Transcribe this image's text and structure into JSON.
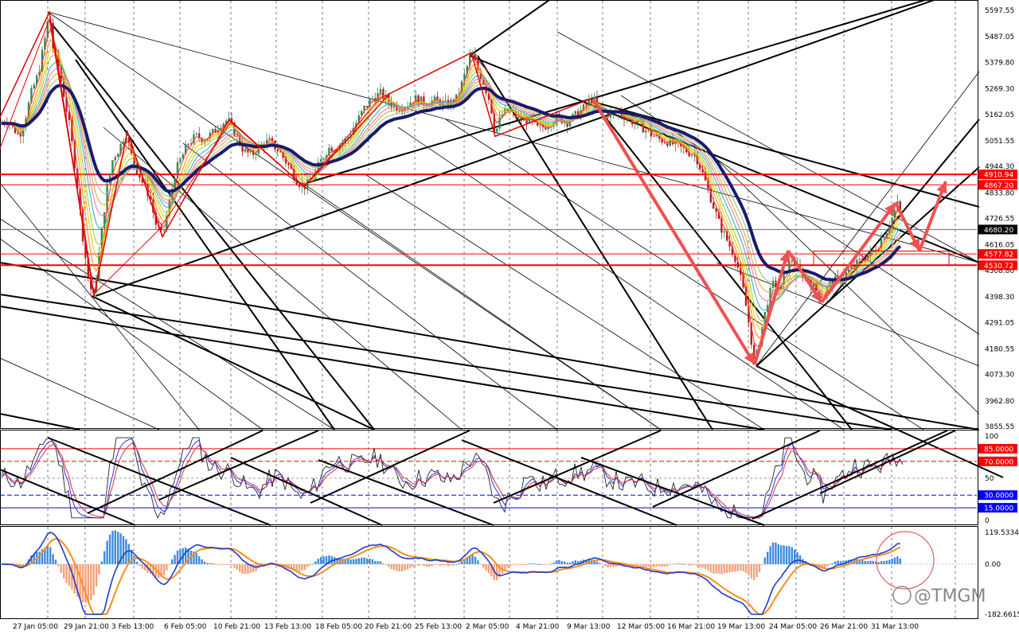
{
  "chart_data": [
    {
      "type": "candlestick",
      "panel": "price",
      "y_axis_ticks": [
        "5597.55",
        "5487.05",
        "5379.80",
        "5269.30",
        "5162.05",
        "5051.55",
        "4944.30",
        "4833.80",
        "4726.55",
        "4616.05",
        "4508.80",
        "4398.30",
        "4291.05",
        "4180.55",
        "4073.30",
        "3962.80",
        "3855.55"
      ],
      "ylim": [
        3855.55,
        5597.55
      ],
      "horizontal_levels": [
        {
          "label": "4910.94",
          "value": 4910.94,
          "color": "#ff0000",
          "tag_color": "#ff0000"
        },
        {
          "label": "4867.20",
          "value": 4867.2,
          "color": "#ff0000",
          "tag_color": "#ff0000"
        },
        {
          "label": "4680.20",
          "value": 4680.2,
          "color": "#4169e1",
          "tag_color": "#000000"
        },
        {
          "label": "4577.82",
          "value": 4577.82,
          "color": "#ff0000",
          "tag_color": "#ff0000"
        },
        {
          "label": "4530.72",
          "value": 4530.72,
          "color": "#ff0000",
          "tag_color": "#ff0000"
        }
      ],
      "close_path": [
        [
          0,
          5120
        ],
        [
          8,
          5140
        ],
        [
          16,
          5110
        ],
        [
          24,
          5070
        ],
        [
          32,
          5150
        ],
        [
          40,
          5260
        ],
        [
          48,
          5330
        ],
        [
          56,
          5470
        ],
        [
          62,
          5590
        ],
        [
          66,
          5450
        ],
        [
          72,
          5380
        ],
        [
          80,
          5250
        ],
        [
          88,
          5100
        ],
        [
          96,
          4900
        ],
        [
          104,
          4650
        ],
        [
          112,
          4450
        ],
        [
          118,
          4400
        ],
        [
          126,
          4620
        ],
        [
          134,
          4850
        ],
        [
          142,
          4980
        ],
        [
          150,
          5020
        ],
        [
          158,
          5090
        ],
        [
          164,
          5000
        ],
        [
          172,
          4930
        ],
        [
          180,
          4870
        ],
        [
          188,
          4820
        ],
        [
          196,
          4700
        ],
        [
          204,
          4650
        ],
        [
          212,
          4780
        ],
        [
          220,
          4920
        ],
        [
          228,
          4980
        ],
        [
          236,
          5040
        ],
        [
          246,
          5070
        ],
        [
          256,
          5060
        ],
        [
          266,
          5080
        ],
        [
          276,
          5120
        ],
        [
          286,
          5140
        ],
        [
          296,
          5080
        ],
        [
          306,
          5010
        ],
        [
          316,
          4990
        ],
        [
          326,
          5030
        ],
        [
          338,
          5050
        ],
        [
          350,
          5010
        ],
        [
          362,
          4950
        ],
        [
          374,
          4880
        ],
        [
          382,
          4860
        ],
        [
          392,
          4890
        ],
        [
          402,
          4960
        ],
        [
          412,
          5020
        ],
        [
          424,
          5030
        ],
        [
          436,
          5060
        ],
        [
          448,
          5130
        ],
        [
          458,
          5190
        ],
        [
          468,
          5230
        ],
        [
          478,
          5250
        ],
        [
          490,
          5210
        ],
        [
          500,
          5190
        ],
        [
          510,
          5200
        ],
        [
          520,
          5230
        ],
        [
          534,
          5210
        ],
        [
          548,
          5220
        ],
        [
          562,
          5200
        ],
        [
          574,
          5230
        ],
        [
          584,
          5330
        ],
        [
          592,
          5420
        ],
        [
          600,
          5350
        ],
        [
          608,
          5290
        ],
        [
          616,
          5210
        ],
        [
          622,
          5080
        ],
        [
          630,
          5160
        ],
        [
          640,
          5180
        ],
        [
          652,
          5140
        ],
        [
          664,
          5140
        ],
        [
          676,
          5100
        ],
        [
          688,
          5120
        ],
        [
          700,
          5150
        ],
        [
          712,
          5130
        ],
        [
          724,
          5160
        ],
        [
          734,
          5190
        ],
        [
          744,
          5230
        ],
        [
          754,
          5180
        ],
        [
          766,
          5160
        ],
        [
          778,
          5170
        ],
        [
          790,
          5140
        ],
        [
          802,
          5120
        ],
        [
          814,
          5090
        ],
        [
          826,
          5060
        ],
        [
          838,
          5050
        ],
        [
          850,
          5030
        ],
        [
          862,
          5010
        ],
        [
          874,
          4990
        ],
        [
          884,
          4900
        ],
        [
          894,
          4800
        ],
        [
          904,
          4700
        ],
        [
          914,
          4630
        ],
        [
          924,
          4560
        ],
        [
          934,
          4420
        ],
        [
          942,
          4260
        ],
        [
          948,
          4110
        ],
        [
          956,
          4250
        ],
        [
          964,
          4380
        ],
        [
          972,
          4460
        ],
        [
          980,
          4420
        ],
        [
          988,
          4520
        ],
        [
          996,
          4560
        ],
        [
          1004,
          4500
        ],
        [
          1014,
          4480
        ],
        [
          1024,
          4430
        ],
        [
          1034,
          4400
        ],
        [
          1044,
          4460
        ],
        [
          1054,
          4470
        ],
        [
          1064,
          4500
        ],
        [
          1074,
          4530
        ],
        [
          1084,
          4560
        ],
        [
          1094,
          4580
        ],
        [
          1104,
          4620
        ],
        [
          1114,
          4680
        ],
        [
          1122,
          4740
        ],
        [
          1128,
          4790
        ],
        [
          1134,
          4700
        ]
      ]
    },
    {
      "type": "line",
      "panel": "stochastic",
      "y_axis_ticks": [
        "100",
        "85.0000",
        "70.0000",
        "50",
        "30.0000",
        "15.0000",
        "0"
      ],
      "levels": [
        {
          "label": "85.0000",
          "value": 85,
          "color": "#ff0000",
          "tag_color": "#ff0000"
        },
        {
          "label": "70.0000",
          "value": 70,
          "color": "#ff0000",
          "tag_color": "#ff0000"
        },
        {
          "label": "30.0000",
          "value": 30,
          "color": "#0000ff",
          "tag_color": "#0000ff"
        },
        {
          "label": "15.0000",
          "value": 15,
          "color": "#0000ff",
          "tag_color": "#0000ff"
        }
      ],
      "ylim": [
        0,
        100
      ]
    },
    {
      "type": "line",
      "panel": "macd",
      "y_axis_ticks": [
        "119.5334",
        "0.00",
        "-182.6615"
      ],
      "ylim": [
        -182.6615,
        119.5334
      ]
    }
  ],
  "x_axis_labels": [
    "27 Jan 05:00",
    "29 Jan 21:00",
    "3 Feb 13:00",
    "6 Feb 05:00",
    "10 Feb 21:00",
    "13 Feb 13:00",
    "18 Feb 05:00",
    "20 Feb 21:00",
    "25 Feb 13:00",
    "2 Mar 05:00",
    "4 Mar 21:00",
    "9 Mar 13:00",
    "12 Mar 05:00",
    "16 Mar 21:00",
    "19 Mar 13:00",
    "24 Mar 05:00",
    "26 Mar 21:00",
    "31 Mar 13:00"
  ],
  "watermark": "@TMGM",
  "colors": {
    "up_candle": "#2e8b57",
    "down_candle": "#b22222",
    "slow_ma": "#1a1a6e",
    "level_red": "#ff0000",
    "level_blue": "#4169e1",
    "arrow": "#f05050",
    "macd_line": "#1e3cc8",
    "signal_line": "#ff8c1a",
    "hist_pos": "#3c8cdc",
    "hist_neg": "#f4a07a"
  }
}
